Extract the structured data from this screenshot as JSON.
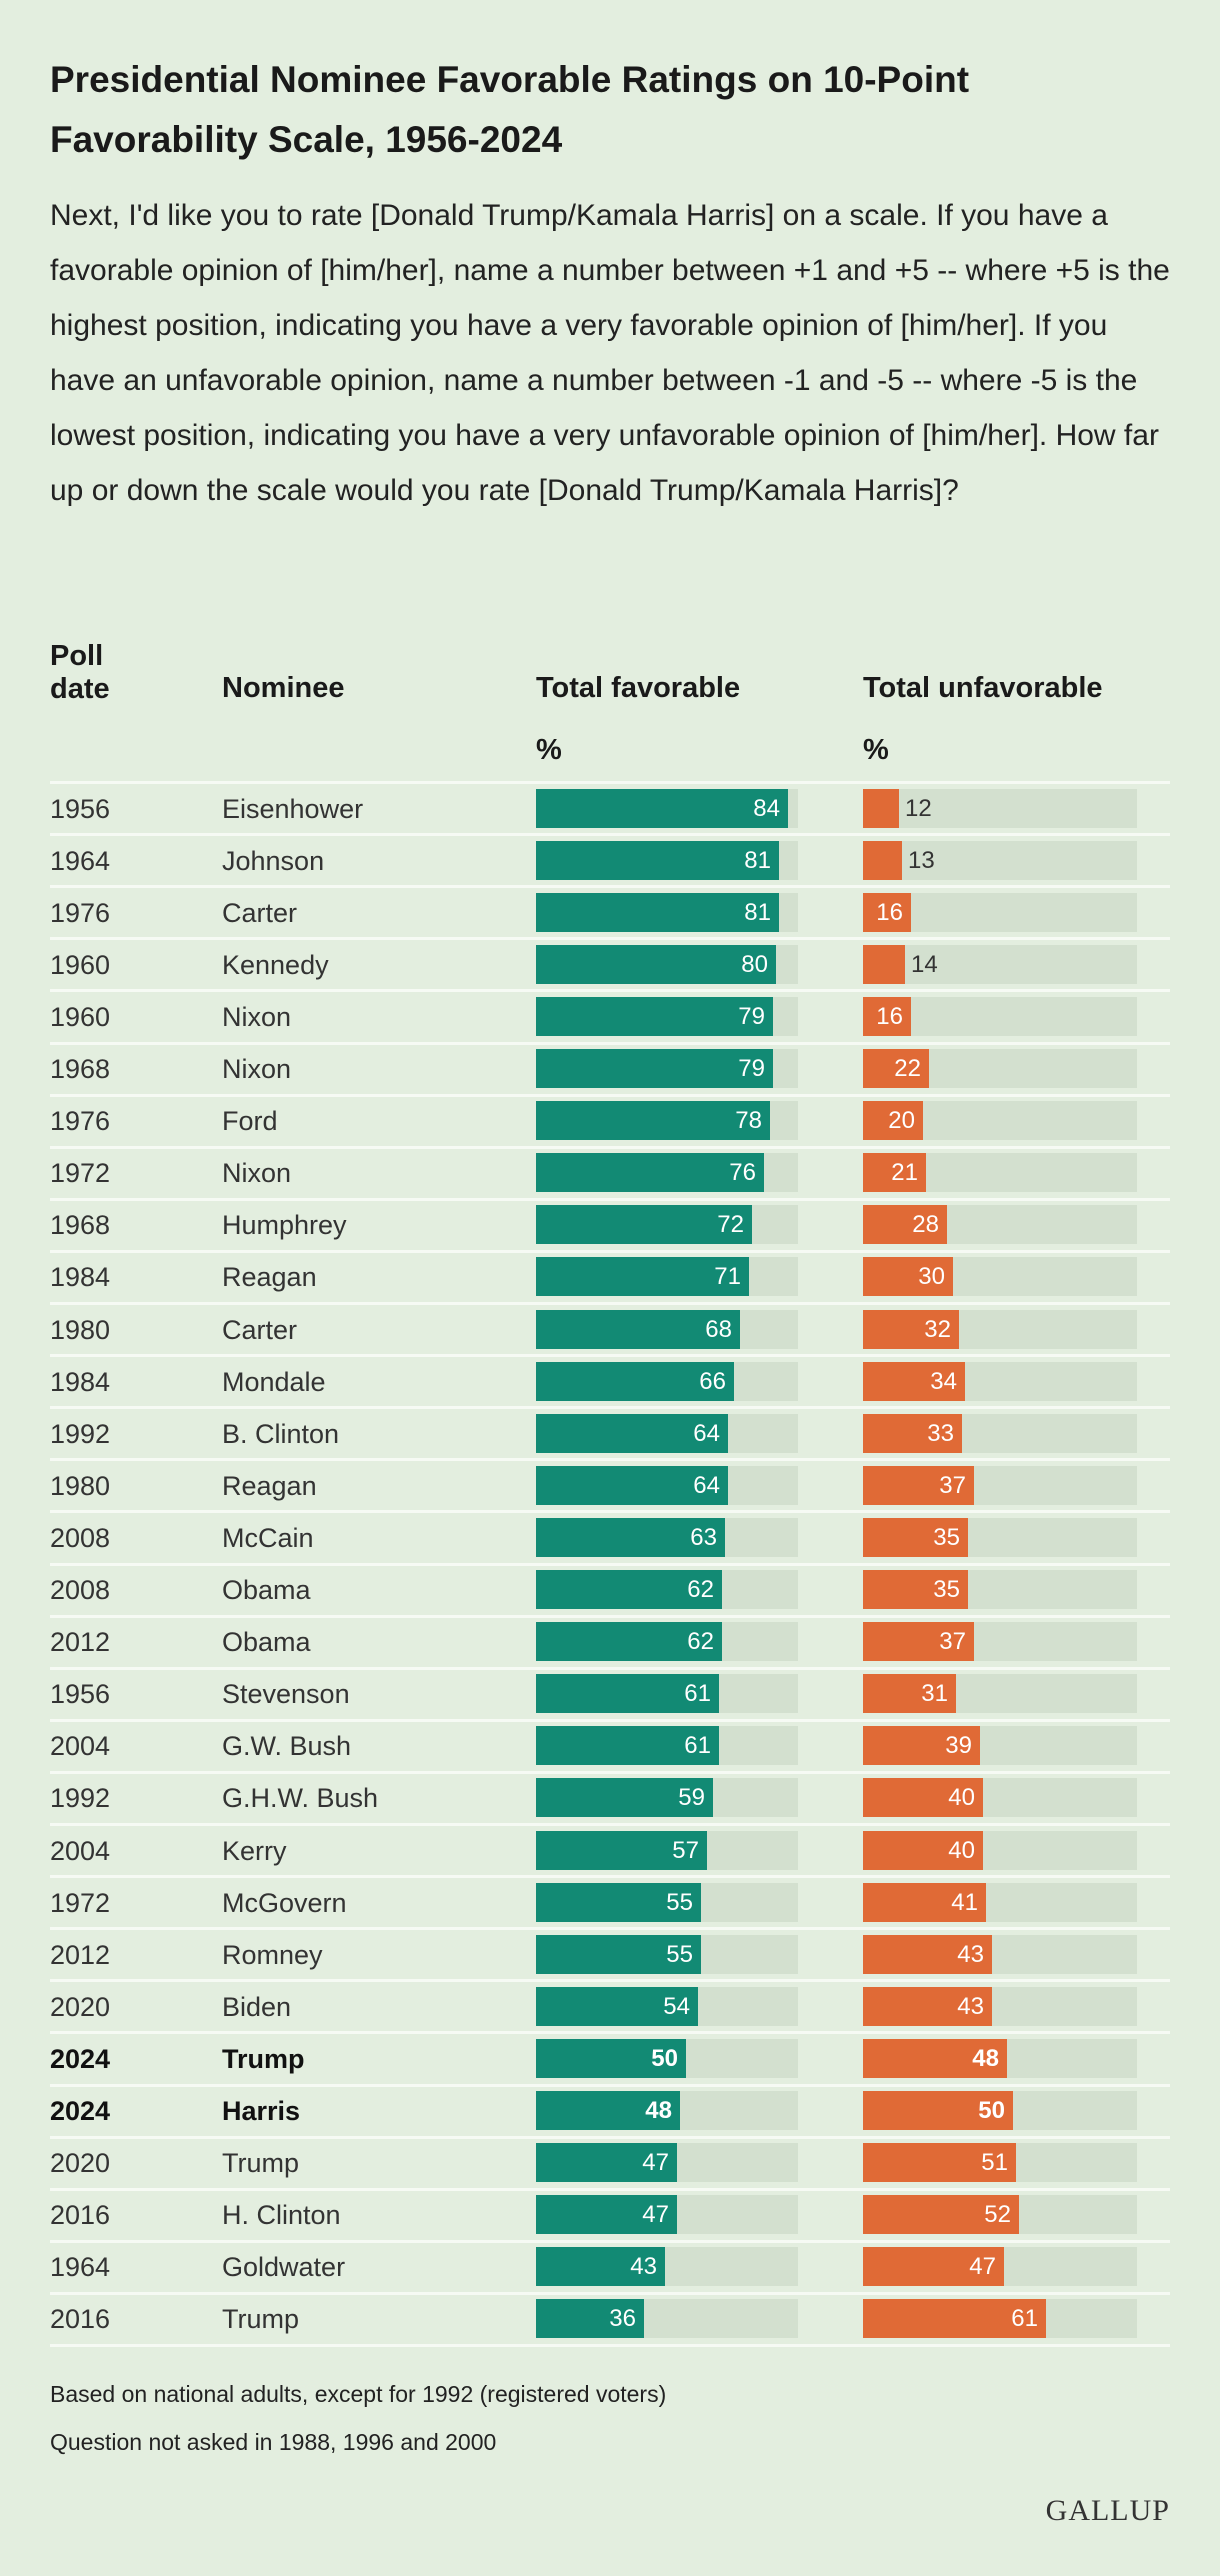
{
  "title": "Presidential Nominee Favorable Ratings on 10-Point Favorability Scale, 1956-2024",
  "question": "Next, I'd like you to rate [Donald Trump/Kamala Harris] on a scale. If you have a favorable opinion of [him/her], name a number between +1 and +5 -- where +5 is the highest position, indicating you have a very favorable opinion of [him/her]. If you have an unfavorable opinion, name a number between -1 and -5 -- where -5 is the lowest position, indicating you have a very unfavorable opinion of [him/her]. How far up or down the scale would you rate [Donald Trump/Kamala Harris]?",
  "columns": {
    "poll_date": "Poll\ndate",
    "nominee": "Nominee",
    "favorable": "Total favorable",
    "unfavorable": "Total unfavorable",
    "unit": "%"
  },
  "chart_data": {
    "type": "table",
    "scale_max": 100,
    "colors": {
      "favorable": "#128a74",
      "unfavorable": "#e06a36",
      "track": "#d3e0cf",
      "background": "#e3eedf"
    },
    "rows": [
      {
        "year": "1956",
        "nominee": "Eisenhower",
        "favorable": 84,
        "unfavorable": 12,
        "highlight": false
      },
      {
        "year": "1964",
        "nominee": "Johnson",
        "favorable": 81,
        "unfavorable": 13,
        "highlight": false
      },
      {
        "year": "1976",
        "nominee": "Carter",
        "favorable": 81,
        "unfavorable": 16,
        "highlight": false
      },
      {
        "year": "1960",
        "nominee": "Kennedy",
        "favorable": 80,
        "unfavorable": 14,
        "highlight": false
      },
      {
        "year": "1960",
        "nominee": "Nixon",
        "favorable": 79,
        "unfavorable": 16,
        "highlight": false
      },
      {
        "year": "1968",
        "nominee": "Nixon",
        "favorable": 79,
        "unfavorable": 22,
        "highlight": false
      },
      {
        "year": "1976",
        "nominee": "Ford",
        "favorable": 78,
        "unfavorable": 20,
        "highlight": false
      },
      {
        "year": "1972",
        "nominee": "Nixon",
        "favorable": 76,
        "unfavorable": 21,
        "highlight": false
      },
      {
        "year": "1968",
        "nominee": "Humphrey",
        "favorable": 72,
        "unfavorable": 28,
        "highlight": false
      },
      {
        "year": "1984",
        "nominee": "Reagan",
        "favorable": 71,
        "unfavorable": 30,
        "highlight": false
      },
      {
        "year": "1980",
        "nominee": "Carter",
        "favorable": 68,
        "unfavorable": 32,
        "highlight": false
      },
      {
        "year": "1984",
        "nominee": "Mondale",
        "favorable": 66,
        "unfavorable": 34,
        "highlight": false
      },
      {
        "year": "1992",
        "nominee": "B. Clinton",
        "favorable": 64,
        "unfavorable": 33,
        "highlight": false
      },
      {
        "year": "1980",
        "nominee": "Reagan",
        "favorable": 64,
        "unfavorable": 37,
        "highlight": false
      },
      {
        "year": "2008",
        "nominee": "McCain",
        "favorable": 63,
        "unfavorable": 35,
        "highlight": false
      },
      {
        "year": "2008",
        "nominee": "Obama",
        "favorable": 62,
        "unfavorable": 35,
        "highlight": false
      },
      {
        "year": "2012",
        "nominee": "Obama",
        "favorable": 62,
        "unfavorable": 37,
        "highlight": false
      },
      {
        "year": "1956",
        "nominee": "Stevenson",
        "favorable": 61,
        "unfavorable": 31,
        "highlight": false
      },
      {
        "year": "2004",
        "nominee": "G.W. Bush",
        "favorable": 61,
        "unfavorable": 39,
        "highlight": false
      },
      {
        "year": "1992",
        "nominee": "G.H.W. Bush",
        "favorable": 59,
        "unfavorable": 40,
        "highlight": false
      },
      {
        "year": "2004",
        "nominee": "Kerry",
        "favorable": 57,
        "unfavorable": 40,
        "highlight": false
      },
      {
        "year": "1972",
        "nominee": "McGovern",
        "favorable": 55,
        "unfavorable": 41,
        "highlight": false
      },
      {
        "year": "2012",
        "nominee": "Romney",
        "favorable": 55,
        "unfavorable": 43,
        "highlight": false
      },
      {
        "year": "2020",
        "nominee": "Biden",
        "favorable": 54,
        "unfavorable": 43,
        "highlight": false
      },
      {
        "year": "2024",
        "nominee": "Trump",
        "favorable": 50,
        "unfavorable": 48,
        "highlight": true
      },
      {
        "year": "2024",
        "nominee": "Harris",
        "favorable": 48,
        "unfavorable": 50,
        "highlight": true
      },
      {
        "year": "2020",
        "nominee": "Trump",
        "favorable": 47,
        "unfavorable": 51,
        "highlight": false
      },
      {
        "year": "2016",
        "nominee": "H. Clinton",
        "favorable": 47,
        "unfavorable": 52,
        "highlight": false
      },
      {
        "year": "1964",
        "nominee": "Goldwater",
        "favorable": 43,
        "unfavorable": 47,
        "highlight": false
      },
      {
        "year": "2016",
        "nominee": "Trump",
        "favorable": 36,
        "unfavorable": 61,
        "highlight": false
      }
    ]
  },
  "footnotes": [
    "Based on national adults, except for 1992 (registered voters)",
    "Question not asked in 1988, 1996 and 2000"
  ],
  "logo": "GALLUP"
}
